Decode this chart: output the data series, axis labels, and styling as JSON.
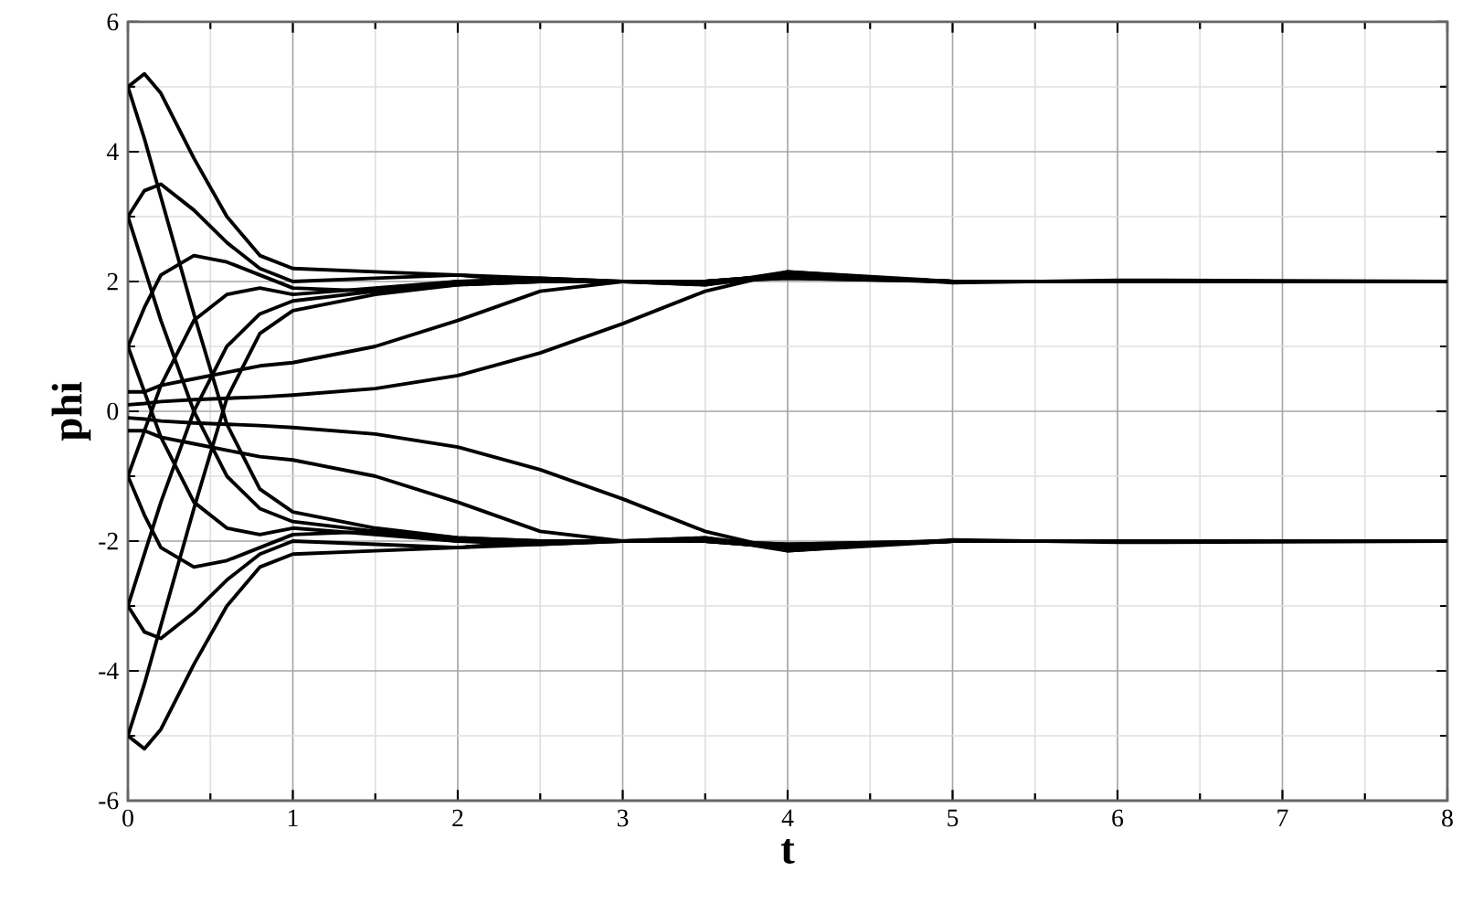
{
  "chart_data": {
    "type": "line",
    "xlabel": "t",
    "ylabel": "phi",
    "x": [
      0,
      0.1,
      0.2,
      0.4,
      0.6,
      0.8,
      1,
      1.5,
      2,
      2.5,
      3,
      3.5,
      4,
      5,
      6,
      8
    ],
    "xlim": [
      0,
      8
    ],
    "ylim": [
      -6,
      6
    ],
    "xticks": [
      0,
      1,
      2,
      3,
      4,
      5,
      6,
      7,
      8
    ],
    "yticks": [
      -6,
      -4,
      -2,
      0,
      2,
      4,
      6
    ],
    "grid": true,
    "marker": "none",
    "line_style": "solid",
    "series": [
      {
        "color": "#000000",
        "values": [
          5.0,
          5.2,
          4.9,
          3.9,
          3.0,
          2.4,
          2.2,
          2.15,
          2.1,
          2.05,
          2.0,
          1.95,
          2.1,
          2.0,
          2.0,
          2.0
        ]
      },
      {
        "color": "#000000",
        "values": [
          3.0,
          3.4,
          3.5,
          3.1,
          2.6,
          2.2,
          2.0,
          2.05,
          2.1,
          2.0,
          2.0,
          1.95,
          2.15,
          1.98,
          2.02,
          2.0
        ]
      },
      {
        "color": "#000000",
        "values": [
          1.0,
          1.6,
          2.1,
          2.4,
          2.3,
          2.1,
          1.9,
          1.85,
          2.0,
          2.0,
          2.0,
          2.0,
          2.1,
          2.0,
          2.0,
          2.0
        ]
      },
      {
        "color": "#000000",
        "values": [
          -1.0,
          -0.3,
          0.4,
          1.4,
          1.8,
          1.9,
          1.8,
          1.9,
          2.0,
          2.05,
          2.0,
          2.0,
          2.05,
          2.0,
          2.0,
          2.0
        ]
      },
      {
        "color": "#000000",
        "values": [
          -3.0,
          -2.2,
          -1.4,
          0.0,
          1.0,
          1.5,
          1.7,
          1.85,
          1.95,
          2.0,
          2.0,
          2.0,
          2.1,
          2.0,
          2.0,
          2.0
        ]
      },
      {
        "color": "#000000",
        "values": [
          -5.0,
          -4.2,
          -3.3,
          -1.5,
          0.2,
          1.2,
          1.55,
          1.8,
          1.95,
          2.0,
          2.0,
          2.0,
          2.05,
          2.0,
          2.0,
          2.0
        ]
      },
      {
        "color": "#000000",
        "values": [
          0.1,
          0.12,
          0.15,
          0.18,
          0.2,
          0.22,
          0.25,
          0.35,
          0.55,
          0.9,
          1.35,
          1.85,
          2.15,
          2.0,
          2.0,
          2.0
        ]
      },
      {
        "color": "#000000",
        "values": [
          0.3,
          0.3,
          0.4,
          0.5,
          0.6,
          0.7,
          0.75,
          1.0,
          1.4,
          1.85,
          2.0,
          2.0,
          2.1,
          2.0,
          2.0,
          2.0
        ]
      },
      {
        "color": "#000000",
        "values": [
          -5.0,
          -5.2,
          -4.9,
          -3.9,
          -3.0,
          -2.4,
          -2.2,
          -2.15,
          -2.1,
          -2.05,
          -2.0,
          -1.95,
          -2.1,
          -2.0,
          -2.0,
          -2.0
        ]
      },
      {
        "color": "#000000",
        "values": [
          -3.0,
          -3.4,
          -3.5,
          -3.1,
          -2.6,
          -2.2,
          -2.0,
          -2.05,
          -2.1,
          -2.0,
          -2.0,
          -1.95,
          -2.15,
          -1.98,
          -2.02,
          -2.0
        ]
      },
      {
        "color": "#000000",
        "values": [
          -1.0,
          -1.6,
          -2.1,
          -2.4,
          -2.3,
          -2.1,
          -1.9,
          -1.85,
          -2.0,
          -2.0,
          -2.0,
          -2.0,
          -2.1,
          -2.0,
          -2.0,
          -2.0
        ]
      },
      {
        "color": "#000000",
        "values": [
          1.0,
          0.3,
          -0.4,
          -1.4,
          -1.8,
          -1.9,
          -1.8,
          -1.9,
          -2.0,
          -2.05,
          -2.0,
          -2.0,
          -2.05,
          -2.0,
          -2.0,
          -2.0
        ]
      },
      {
        "color": "#000000",
        "values": [
          3.0,
          2.2,
          1.4,
          0.0,
          -1.0,
          -1.5,
          -1.7,
          -1.85,
          -1.95,
          -2.0,
          -2.0,
          -2.0,
          -2.1,
          -2.0,
          -2.0,
          -2.0
        ]
      },
      {
        "color": "#000000",
        "values": [
          5.0,
          4.2,
          3.3,
          1.5,
          -0.2,
          -1.2,
          -1.55,
          -1.8,
          -1.95,
          -2.0,
          -2.0,
          -2.0,
          -2.05,
          -2.0,
          -2.0,
          -2.0
        ]
      },
      {
        "color": "#000000",
        "values": [
          -0.1,
          -0.12,
          -0.15,
          -0.18,
          -0.2,
          -0.22,
          -0.25,
          -0.35,
          -0.55,
          -0.9,
          -1.35,
          -1.85,
          -2.15,
          -2.0,
          -2.0,
          -2.0
        ]
      },
      {
        "color": "#000000",
        "values": [
          -0.3,
          -0.3,
          -0.4,
          -0.5,
          -0.6,
          -0.7,
          -0.75,
          -1.0,
          -1.4,
          -1.85,
          -2.0,
          -2.0,
          -2.1,
          -2.0,
          -2.0,
          -2.0
        ]
      }
    ]
  }
}
